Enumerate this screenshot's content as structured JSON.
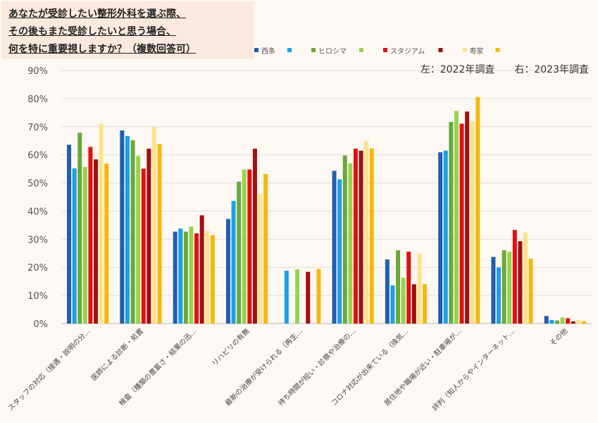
{
  "chart_data": {
    "type": "bar",
    "title_lines": [
      "あなたが受診したい整形外科を選ぶ際、",
      "その後もまた受診したいと思う場合、",
      "何を特に重要視しますか？（複数回答可）"
    ],
    "note": "左：2022年調査　　右：2023年調査",
    "ylim": [
      0,
      90
    ],
    "y_ticks": [
      "0%",
      "10%",
      "20%",
      "30%",
      "40%",
      "50%",
      "60%",
      "70%",
      "80%",
      "90%"
    ],
    "grid": true,
    "legend_position": "top",
    "categories": [
      "スタッフの対応（接遇・説明の分…",
      "医師による診断・処置",
      "検査（種類の豊富さ・結果の迅…",
      "リハビリの有無",
      "最新の治療が受けられる（再生…",
      "待ち時間が短い・診察や治療の…",
      "コロナ対応が出来ている（換気…",
      "居住地や職場が近い・駐車場が…",
      "評判（知人からやインターネット…",
      "その他"
    ],
    "series": [
      {
        "name": "西条",
        "color": "#1f5fb0",
        "values": [
          63.6,
          68.7,
          32.7,
          37.2,
          null,
          54.3,
          22.8,
          60.9,
          23.7,
          2.7
        ]
      },
      {
        "name": "",
        "color": "#1ca0e2",
        "values": [
          55.2,
          66.7,
          33.8,
          43.6,
          18.8,
          51.3,
          13.6,
          61.5,
          20.0,
          1.3
        ]
      },
      {
        "name": "ヒロシマ",
        "color": "#6aa83a",
        "values": [
          67.9,
          65.2,
          32.7,
          50.5,
          null,
          59.8,
          26.1,
          71.7,
          26.1,
          1.1
        ]
      },
      {
        "name": "",
        "color": "#96d34e",
        "values": [
          55.7,
          59.6,
          34.5,
          54.8,
          19.3,
          57.0,
          16.3,
          75.6,
          25.5,
          2.2
        ]
      },
      {
        "name": "スタジアム",
        "color": "#e01010",
        "values": [
          62.8,
          55.1,
          32.1,
          54.8,
          null,
          62.2,
          25.6,
          71.1,
          33.3,
          1.9
        ]
      },
      {
        "name": "",
        "color": "#a01010",
        "values": [
          58.4,
          62.2,
          38.5,
          62.2,
          18.4,
          61.5,
          14.0,
          75.4,
          29.3,
          0.8
        ]
      },
      {
        "name": "寿家",
        "color": "#fce38a",
        "values": [
          71.0,
          69.8,
          33.0,
          46.1,
          null,
          65.0,
          25.0,
          72.0,
          32.4,
          1.4
        ]
      },
      {
        "name": "",
        "color": "#f5b90f",
        "values": [
          56.9,
          63.9,
          31.5,
          53.2,
          19.4,
          62.3,
          14.0,
          80.6,
          23.1,
          0.9
        ]
      }
    ]
  }
}
